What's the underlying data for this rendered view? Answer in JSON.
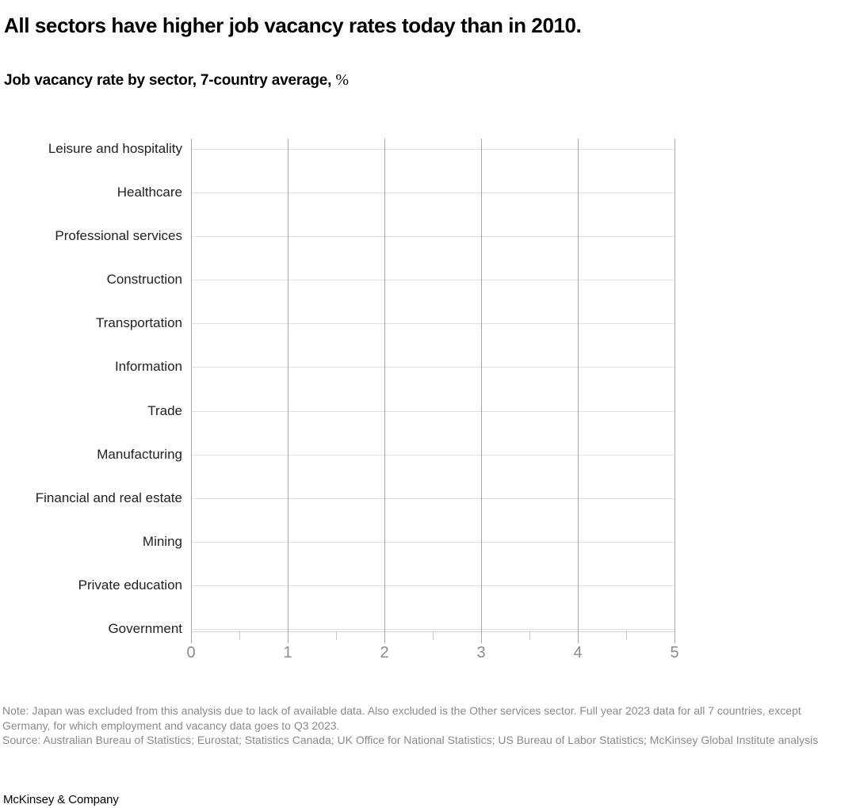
{
  "header": {
    "title": "All sectors have higher job vacancy rates today than in 2010.",
    "subtitle": "Job vacancy rate by sector, 7-country average,",
    "subtitle_unit": "%"
  },
  "chart_data": {
    "type": "bar",
    "orientation": "horizontal",
    "title": "Job vacancy rate by sector, 7-country average, %",
    "categories": [
      "Leisure and hospitality",
      "Healthcare",
      "Professional services",
      "Construction",
      "Transportation",
      "Information",
      "Trade",
      "Manufacturing",
      "Financial and real estate",
      "Mining",
      "Private education",
      "Government"
    ],
    "series": [],
    "bars_rendered": false,
    "x_ticks": [
      0,
      1,
      2,
      3,
      4,
      5
    ],
    "x_tick_labels": [
      "0",
      "1",
      "2",
      "3",
      "4",
      "5"
    ],
    "xlim": [
      0,
      5
    ],
    "minor_tick_step": 0.5,
    "grid": true,
    "legend": "none",
    "xlabel": "",
    "ylabel": ""
  },
  "footer": {
    "note": "Note: Japan was excluded from this analysis due to lack of available data. Also excluded is the Other services sector. Full year 2023 data for all 7 countries, except Germany, for which employment and vacancy data goes to Q3 2023.",
    "source": "Source: Australian Bureau of Statistics; Eurostat; Statistics Canada; UK Office for National Statistics; US Bureau of Labor Statistics; McKinsey Global Institute analysis",
    "brand": "McKinsey & Company"
  },
  "colors": {
    "title_text": "#000000",
    "label_text": "#1f1f1f",
    "tick_label": "#8c8c8c",
    "note_text": "#8a8a8a",
    "grid_major": "#a7a7a7",
    "grid_row": "#e1e1e1",
    "axis_line": "#d4d4d4",
    "tick_minor": "#c9c9c9",
    "background": "#ffffff"
  }
}
